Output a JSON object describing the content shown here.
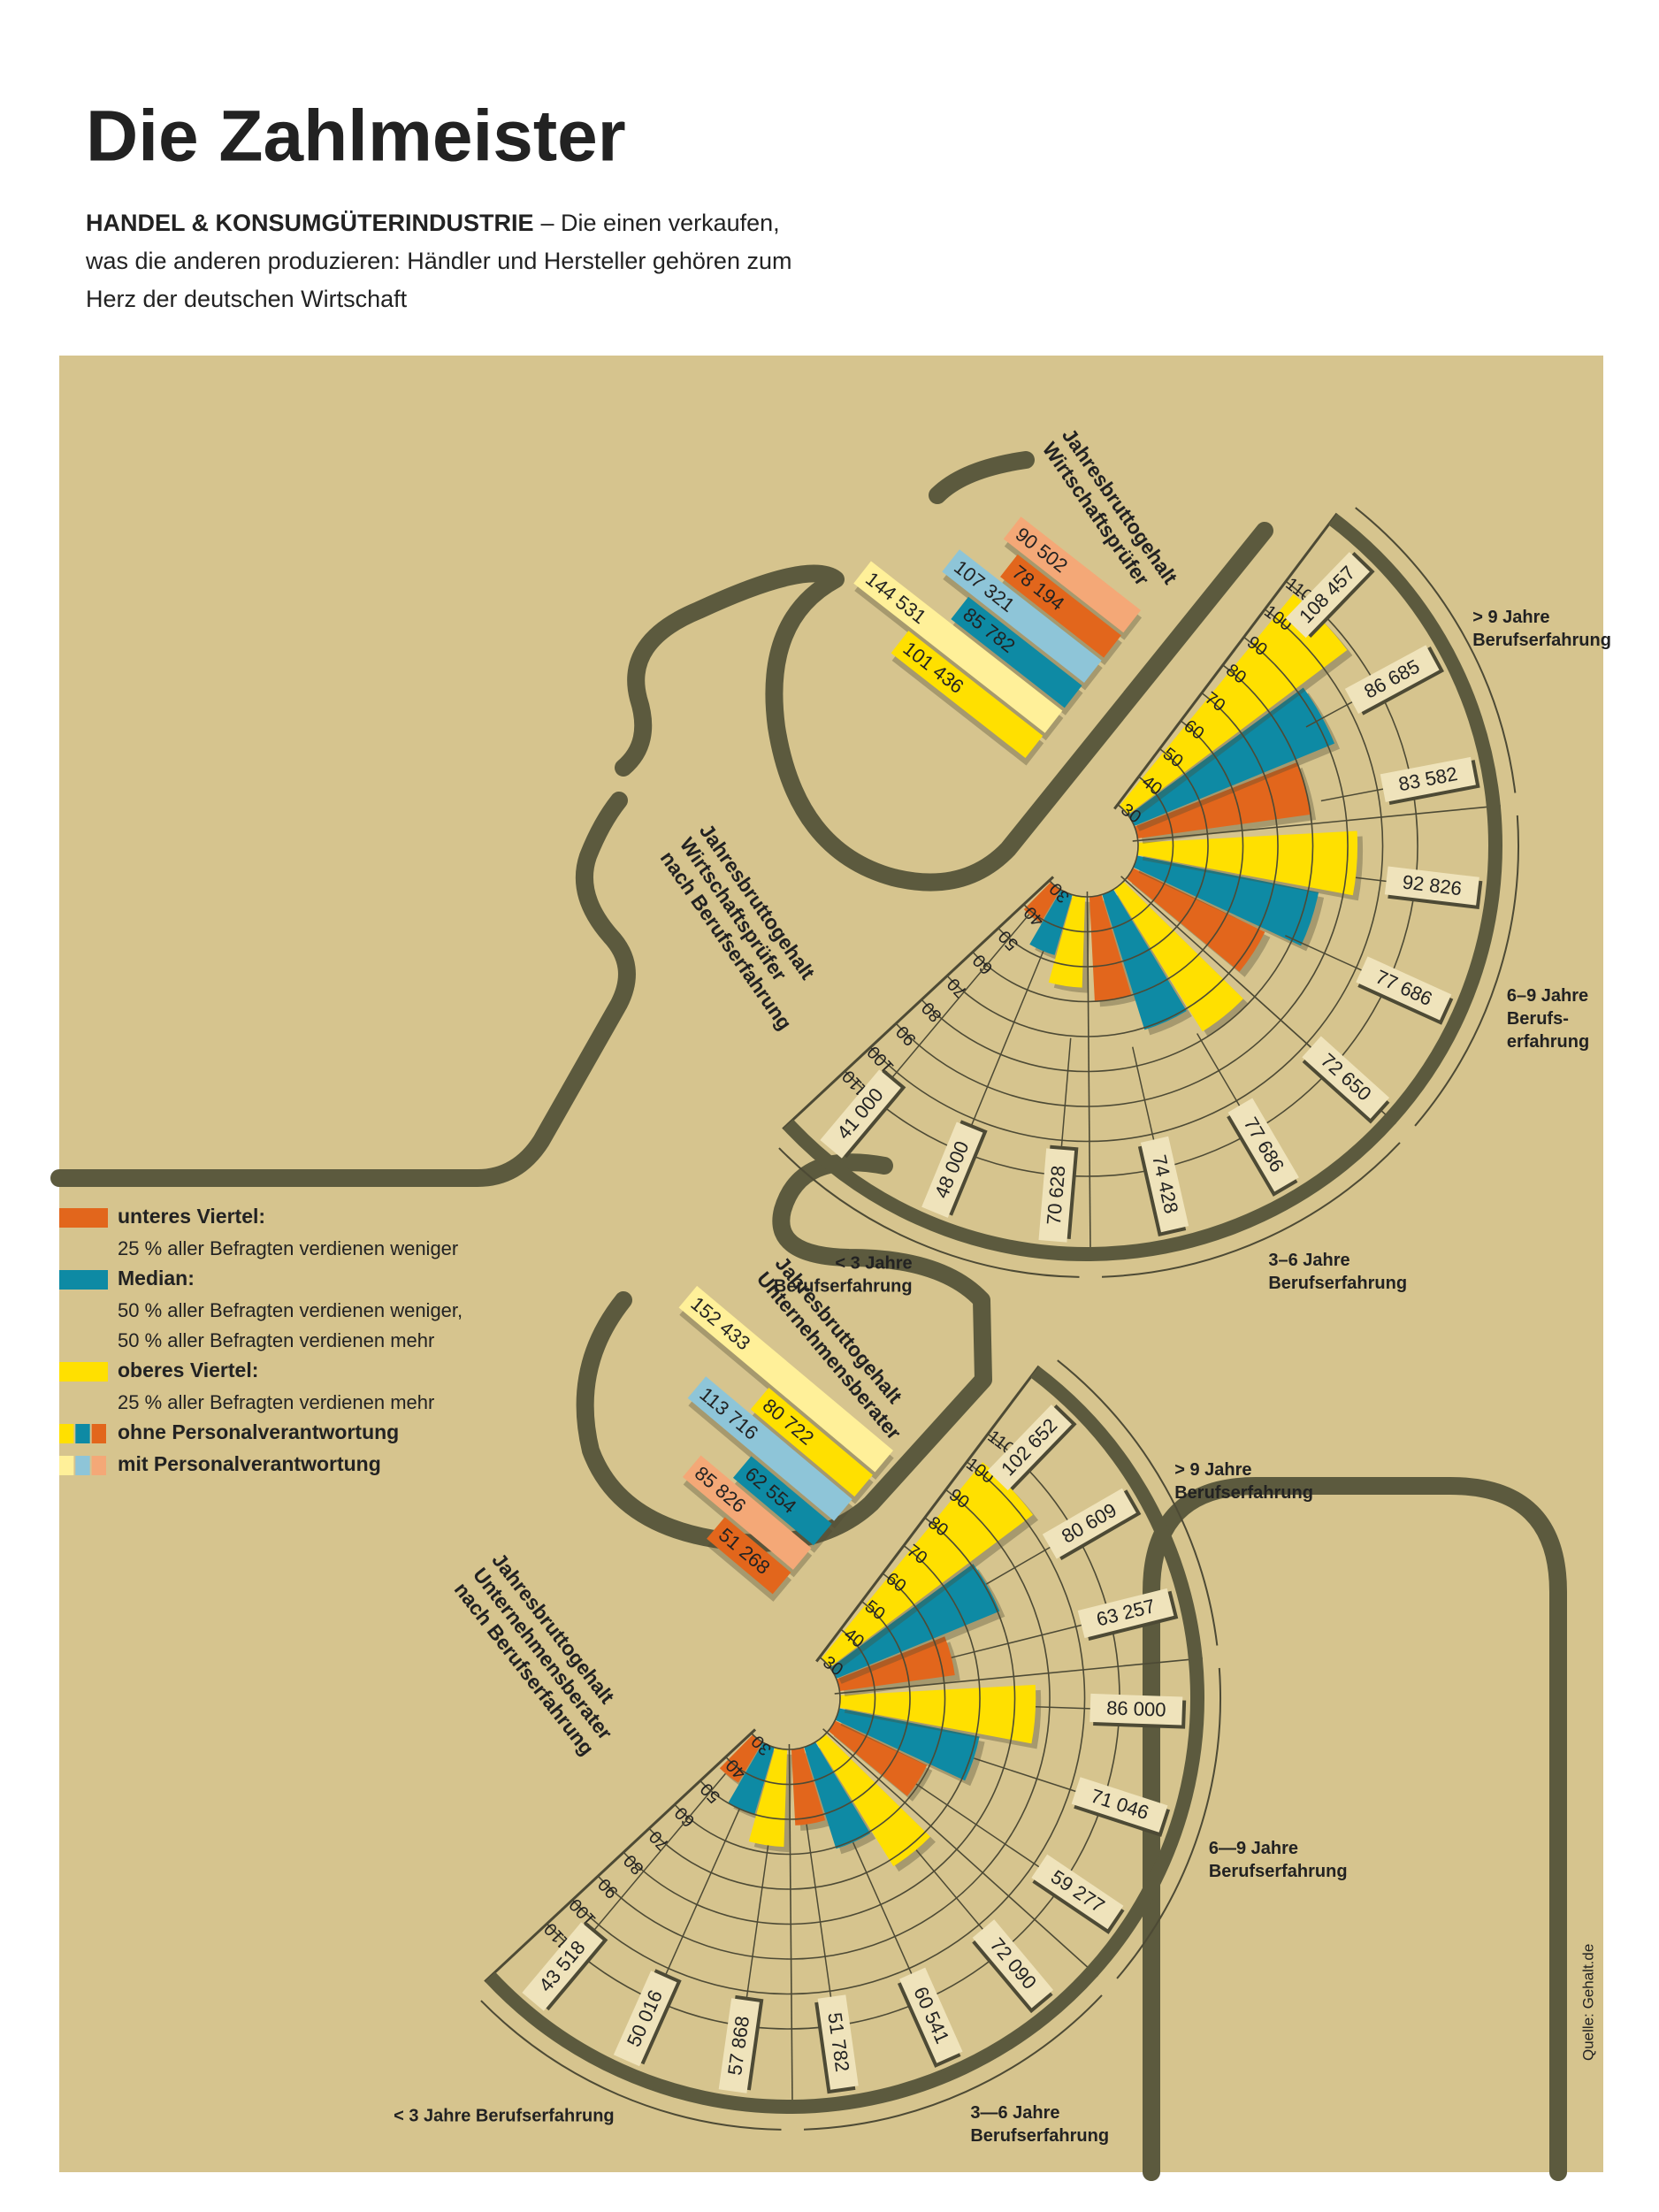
{
  "header": {
    "title": "Die Zahlmeister",
    "subtitle_lead": "HANDEL & KONSUMGÜTERINDUSTRIE",
    "subtitle_lines": [
      "– Die einen verkaufen,",
      "was die anderen produzieren:  Händler und Hersteller gehören zum",
      "Herz der deutschen Wirtschaft"
    ]
  },
  "legend": [
    {
      "label": "unteres Viertel:",
      "text": [
        "25 % aller Befragten verdienen weniger"
      ],
      "colors": [
        "#e2661c"
      ]
    },
    {
      "label": "Median:",
      "text": [
        "50 % aller Befragten verdienen weniger,",
        "50 % aller Befragten verdienen mehr"
      ],
      "colors": [
        "#0e8aa4"
      ]
    },
    {
      "label": "oberes Viertel:",
      "text": [
        "25 % aller Befragten verdienen mehr"
      ],
      "colors": [
        "#ffe000"
      ]
    },
    {
      "label": "ohne Personalverantwortung",
      "text": [],
      "colors": [
        "#ffe000",
        "#0e8aa4",
        "#e2661c"
      ]
    },
    {
      "label": "mit Personalverantwortung",
      "text": [],
      "colors": [
        "#fff099",
        "#8ec5d8",
        "#f4a877"
      ]
    }
  ],
  "source": "Quelle: Gehalt.de",
  "chart_data": [
    {
      "type": "radial_bar",
      "title": [
        "Jahresbruttogehalt",
        "Wirtschaftsprüfer",
        "nach Berufserfahrung"
      ],
      "rlim": [
        30,
        110
      ],
      "rticks": [
        30,
        40,
        50,
        60,
        70,
        80,
        90,
        100,
        110
      ],
      "groups": [
        {
          "label": [
            "< 3 Jahre",
            "Berufserfahrung"
          ]
        },
        {
          "label": [
            "3–6 Jahre",
            "Berufserfahrung"
          ]
        },
        {
          "label": [
            "6–9 Jahre",
            "Berufs-",
            "erfahrung"
          ]
        },
        {
          "label": [
            "> 9 Jahre",
            "Berufserfahrung"
          ]
        }
      ],
      "series": [
        {
          "color": "#e2661c",
          "values": [
            41,
            60,
            72,
            80
          ]
        },
        {
          "color": "#0e8aa4",
          "values": [
            48,
            70.6,
            83,
            92
          ]
        },
        {
          "color": "#ffe000",
          "values": [
            56,
            78,
            92.8,
            108.5
          ]
        }
      ],
      "callouts": [
        {
          "value": 41,
          "label": "41 000"
        },
        {
          "value": 48,
          "label": "48 000"
        },
        {
          "value": 70.628,
          "label": "70 628"
        },
        {
          "value": 74.428,
          "label": "74 428"
        },
        {
          "value": 77.686,
          "label": "77 686"
        },
        {
          "value": 72.65,
          "label": "72 650"
        },
        {
          "value": 77.686,
          "label": "77 686"
        },
        {
          "value": 92.826,
          "label": "92 826"
        },
        {
          "value": 83.582,
          "label": "83 582"
        },
        {
          "value": 86.685,
          "label": "86 685"
        },
        {
          "value": 108.457,
          "label": "108 457"
        }
      ],
      "summary": {
        "title": [
          "Jahresbruttogehalt",
          "Wirtschaftsprüfer"
        ],
        "bars": [
          {
            "value": 90.502,
            "label": "90 502",
            "color": "#f4a877"
          },
          {
            "value": 78.194,
            "label": "78 194",
            "color": "#e2661c"
          },
          {
            "value": 107.321,
            "label": "107 321",
            "color": "#8ec5d8"
          },
          {
            "value": 85.782,
            "label": "85 782",
            "color": "#0e8aa4"
          },
          {
            "value": 144.531,
            "label": "144 531",
            "color": "#fff099"
          },
          {
            "value": 101.436,
            "label": "101 436",
            "color": "#ffe000"
          }
        ]
      }
    },
    {
      "type": "radial_bar",
      "title": [
        "Jahresbruttogehalt",
        "Unternehmensberater",
        "nach Berufserfahrung"
      ],
      "rlim": [
        30,
        110
      ],
      "rticks": [
        30,
        40,
        50,
        60,
        70,
        80,
        90,
        100,
        110
      ],
      "groups": [
        {
          "label": [
            "< 3 Jahre Berufserfahrung"
          ]
        },
        {
          "label": [
            "3—6 Jahre",
            "Berufserfahrung"
          ]
        },
        {
          "label": [
            "6—9 Jahre",
            "Berufserfahrung"
          ]
        },
        {
          "label": [
            "> 9 Jahre",
            "Berufserfahrung"
          ]
        }
      ],
      "series": [
        {
          "color": "#e2661c",
          "values": [
            43.5,
            51.8,
            59.3,
            63.3
          ]
        },
        {
          "color": "#0e8aa4",
          "values": [
            50,
            60.5,
            71,
            80.6
          ]
        },
        {
          "color": "#ffe000",
          "values": [
            57.9,
            72,
            86,
            102.7
          ]
        }
      ],
      "callouts": [
        {
          "value": 43.518,
          "label": "43 518"
        },
        {
          "value": 50.016,
          "label": "50 016"
        },
        {
          "value": 57.868,
          "label": "57 868"
        },
        {
          "value": 51.782,
          "label": "51 782"
        },
        {
          "value": 60.541,
          "label": "60 541"
        },
        {
          "value": 72.09,
          "label": "72 090"
        },
        {
          "value": 59.277,
          "label": "59 277"
        },
        {
          "value": 71.046,
          "label": "71 046"
        },
        {
          "value": 86,
          "label": "86 000"
        },
        {
          "value": 63.257,
          "label": "63 257"
        },
        {
          "value": 80.609,
          "label": "80 609"
        },
        {
          "value": 102.652,
          "label": "102 652"
        }
      ],
      "summary": {
        "title": [
          "Jahresbruttogehalt",
          "Unternehmensberater"
        ],
        "bars": [
          {
            "value": 152.433,
            "label": "152 433",
            "color": "#fff099"
          },
          {
            "value": 80.722,
            "label": "80 722",
            "color": "#ffe000"
          },
          {
            "value": 113.716,
            "label": "113 716",
            "color": "#8ec5d8"
          },
          {
            "value": 62.554,
            "label": "62 554",
            "color": "#0e8aa4"
          },
          {
            "value": 85.826,
            "label": "85 826",
            "color": "#f4a877"
          },
          {
            "value": 51.268,
            "label": "51 268",
            "color": "#e2661c"
          }
        ]
      }
    }
  ]
}
